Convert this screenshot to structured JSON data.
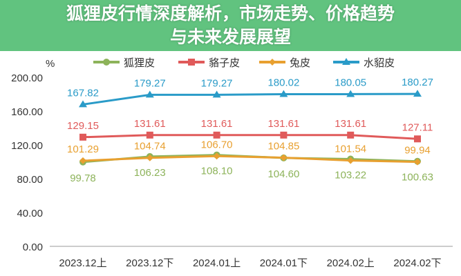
{
  "chart_data": {
    "type": "line",
    "ylabel": "%",
    "ylim": [
      0,
      200
    ],
    "yticks": [
      "0.00",
      "40.00",
      "80.00",
      "120.00",
      "160.00",
      "200.00"
    ],
    "categories": [
      "2023.12上",
      "2023.12下",
      "2024.01上",
      "2024.01下",
      "2024.02上",
      "2024.02下"
    ],
    "legend_position": "top",
    "grid": false,
    "series": [
      {
        "name": "狐狸皮",
        "color": "#8db35a",
        "marker": "circle",
        "label_pos": "below",
        "values": [
          99.78,
          106.23,
          108.1,
          104.6,
          103.22,
          100.63
        ]
      },
      {
        "name": "貉子皮",
        "color": "#e05a5a",
        "marker": "square",
        "label_pos": "above",
        "values": [
          129.15,
          131.61,
          131.61,
          131.61,
          131.61,
          127.11
        ]
      },
      {
        "name": "兔皮",
        "color": "#e8a030",
        "marker": "diamond",
        "label_pos": "above",
        "values": [
          101.29,
          104.74,
          106.7,
          104.85,
          101.54,
          99.94
        ]
      },
      {
        "name": "水貂皮",
        "color": "#2a9bc8",
        "marker": "triangle",
        "label_pos": "above",
        "values": [
          167.82,
          179.27,
          179.27,
          180.02,
          180.05,
          180.27
        ]
      }
    ]
  },
  "banner": {
    "line1": "狐狸皮行情深度解析，市场走势、价格趋势",
    "line2": "与未来发展展望"
  }
}
